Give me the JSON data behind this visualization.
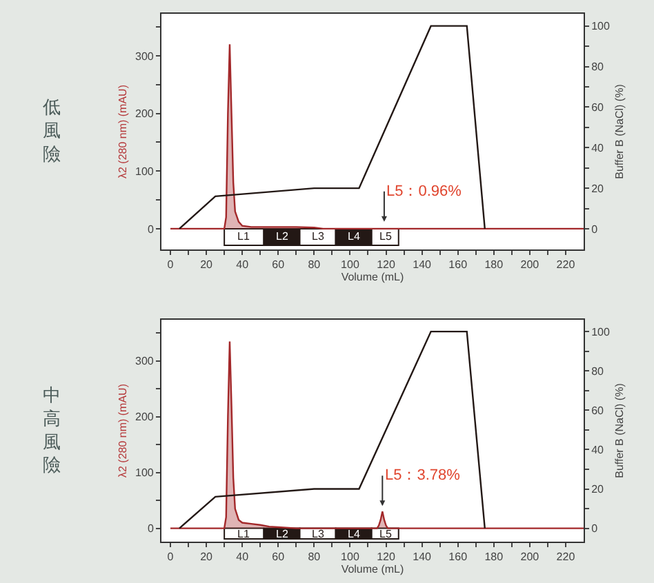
{
  "chart_data": [
    {
      "type": "line",
      "title": "低風險",
      "xlabel": "Volume (mL)",
      "ylabel": "λ2 (280 nm) (mAU)",
      "y2label": "Buffer B (NaCl) (%)",
      "xlim": [
        -5,
        230
      ],
      "xticks": [
        0,
        {
          "value": 10,
          "label": null
        },
        20,
        {
          "value": 30,
          "label": null
        },
        40,
        {
          "value": 50,
          "label": null
        },
        60,
        {
          "value": 70,
          "label": null
        },
        80,
        {
          "value": 90,
          "label": null
        },
        100,
        {
          "value": 110,
          "label": null
        },
        120,
        {
          "value": 130,
          "label": null
        },
        140,
        {
          "value": 150,
          "label": null
        },
        160,
        {
          "value": 170,
          "label": null
        },
        180,
        {
          "value": 190,
          "label": null
        },
        200,
        {
          "value": 210,
          "label": null
        },
        220
      ],
      "ylim": [
        -36,
        373
      ],
      "yticks": [
        0,
        {
          "value": 50,
          "label": null
        },
        100,
        {
          "value": 150,
          "label": null
        },
        200,
        {
          "value": 250,
          "label": null
        },
        300,
        {
          "value": 350,
          "label": null
        }
      ],
      "y2lim": [
        -10.2,
        106
      ],
      "y2ticks": [
        0,
        {
          "value": 10,
          "label": null
        },
        20,
        {
          "value": 30,
          "label": null
        },
        40,
        {
          "value": 50,
          "label": null
        },
        60,
        {
          "value": 70,
          "label": null
        },
        80,
        {
          "value": 90,
          "label": null
        },
        100
      ],
      "series": [
        {
          "type": "area",
          "color": "#a3282a",
          "x": [
            0,
            30,
            31,
            32,
            33,
            34,
            35,
            36,
            38,
            40,
            45,
            50,
            60,
            70,
            80,
            85,
            230
          ],
          "values": [
            0,
            0,
            20,
            200,
            320,
            200,
            80,
            30,
            12,
            5,
            3,
            3,
            3,
            3,
            2,
            0,
            0
          ]
        },
        {
          "axis": "y2",
          "color": "#231815",
          "x": [
            5,
            25,
            80,
            105,
            145,
            165,
            175
          ],
          "values": [
            0,
            16,
            20,
            20,
            100,
            100,
            0
          ]
        }
      ],
      "bands": [
        {
          "axis": "x",
          "from": 30,
          "to": 52,
          "label": "L1",
          "color": "#ffffff"
        },
        {
          "axis": "x",
          "from": 52,
          "to": 72,
          "label": "L2",
          "color": "#231815"
        },
        {
          "axis": "x",
          "from": 72,
          "to": 92,
          "label": "L3",
          "color": "#ffffff"
        },
        {
          "axis": "x",
          "from": 92,
          "to": 112,
          "label": "L4",
          "color": "#231815"
        },
        {
          "axis": "x",
          "from": 112,
          "to": 127,
          "label": "L5",
          "color": "#ffffff"
        }
      ],
      "annotations": [
        {
          "text": "L5：0.96%",
          "x": 119,
          "y": 12
        }
      ],
      "grid": false
    },
    {
      "type": "line",
      "title": "中高風險",
      "xlabel": "Volume (mL)",
      "ylabel": "λ2 (280 nm) (mAU)",
      "y2label": "Buffer B (NaCl) (%)",
      "xlim": [
        -5,
        230
      ],
      "xticks": [
        0,
        {
          "value": 10,
          "label": null
        },
        20,
        {
          "value": 30,
          "label": null
        },
        40,
        {
          "value": 50,
          "label": null
        },
        60,
        {
          "value": 70,
          "label": null
        },
        80,
        {
          "value": 90,
          "label": null
        },
        100,
        {
          "value": 110,
          "label": null
        },
        120,
        {
          "value": 130,
          "label": null
        },
        140,
        {
          "value": 150,
          "label": null
        },
        160,
        {
          "value": 170,
          "label": null
        },
        180,
        {
          "value": 190,
          "label": null
        },
        200,
        {
          "value": 210,
          "label": null
        },
        220
      ],
      "ylim": [
        -24,
        374
      ],
      "yticks": [
        0,
        {
          "value": 50,
          "label": null
        },
        100,
        {
          "value": 150,
          "label": null
        },
        200,
        {
          "value": 250,
          "label": null
        },
        300,
        {
          "value": 350,
          "label": null
        }
      ],
      "y2lim": [
        -6.8,
        106
      ],
      "y2ticks": [
        0,
        {
          "value": 10,
          "label": null
        },
        20,
        {
          "value": 30,
          "label": null
        },
        40,
        {
          "value": 50,
          "label": null
        },
        60,
        {
          "value": 70,
          "label": null
        },
        80,
        {
          "value": 90,
          "label": null
        },
        100
      ],
      "series": [
        {
          "type": "area",
          "color": "#a3282a",
          "x": [
            0,
            30,
            31,
            32,
            33,
            34,
            35,
            36,
            38,
            40,
            45,
            50,
            55,
            60,
            70,
            115,
            116,
            117,
            118,
            119,
            120,
            121,
            230
          ],
          "values": [
            0,
            0,
            20,
            200,
            335,
            220,
            90,
            35,
            15,
            10,
            8,
            6,
            3,
            2,
            0,
            0,
            5,
            15,
            30,
            15,
            5,
            0,
            0
          ]
        },
        {
          "axis": "y2",
          "color": "#231815",
          "x": [
            5,
            25,
            80,
            105,
            145,
            165,
            175
          ],
          "values": [
            0,
            16,
            20,
            20,
            100,
            100,
            0
          ]
        }
      ],
      "bands": [
        {
          "axis": "x",
          "from": 30,
          "to": 52,
          "label": "L1",
          "color": "#ffffff"
        },
        {
          "axis": "x",
          "from": 52,
          "to": 72,
          "label": "L2",
          "color": "#231815"
        },
        {
          "axis": "x",
          "from": 72,
          "to": 92,
          "label": "L3",
          "color": "#ffffff"
        },
        {
          "axis": "x",
          "from": 92,
          "to": 112,
          "label": "L4",
          "color": "#231815"
        },
        {
          "axis": "x",
          "from": 112,
          "to": 127,
          "label": "L5",
          "color": "#ffffff"
        }
      ],
      "annotations": [
        {
          "text": "L5：3.78%",
          "x": 118,
          "y": 40
        }
      ],
      "grid": false
    }
  ]
}
